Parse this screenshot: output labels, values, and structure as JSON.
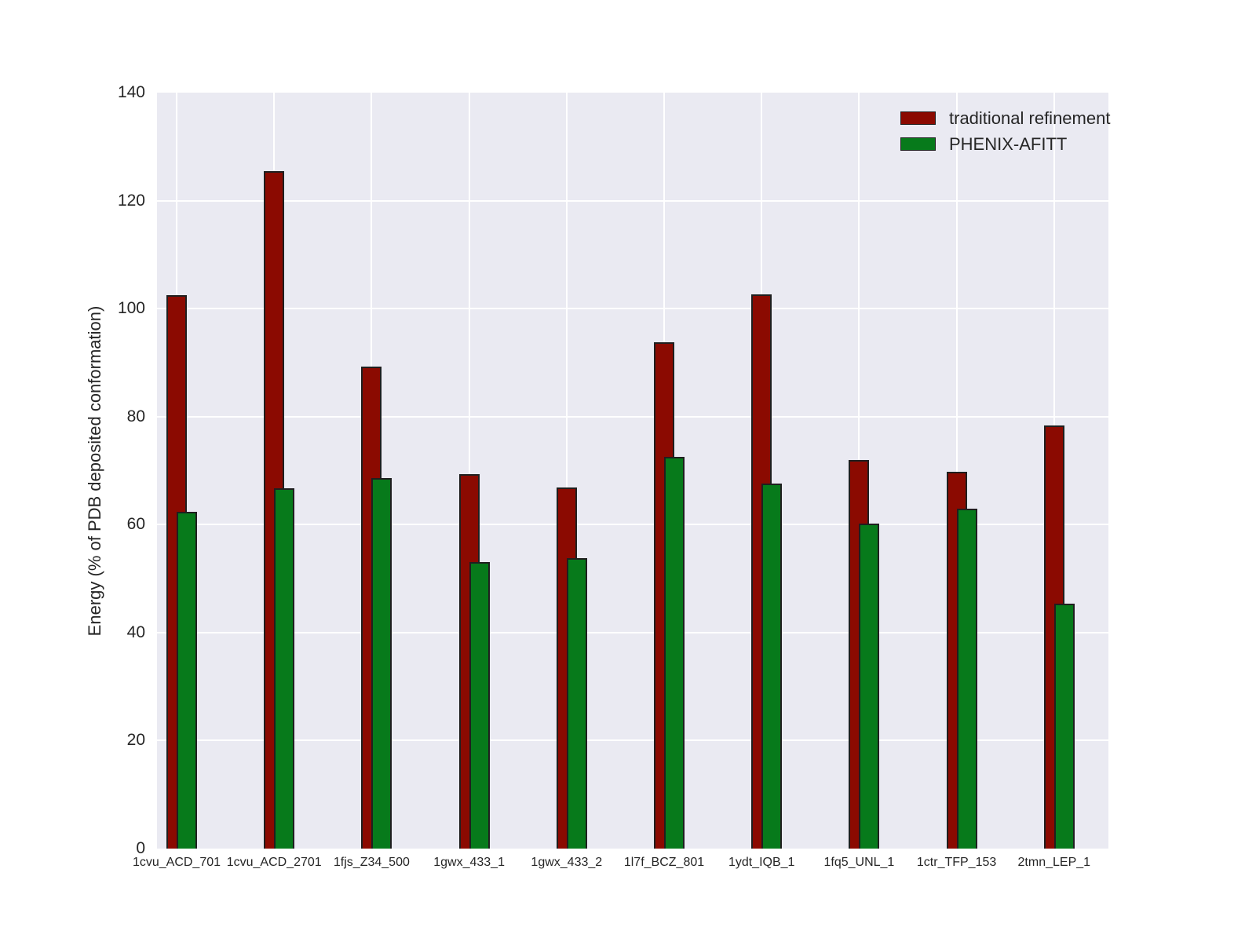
{
  "chart_data": {
    "type": "bar",
    "title": "",
    "xlabel": "",
    "ylabel": "Energy (% of PDB deposited conformation)",
    "ylim": [
      0,
      140
    ],
    "yticks": [
      0,
      20,
      40,
      60,
      80,
      100,
      120,
      140
    ],
    "grid": true,
    "legend_position": "upper right",
    "categories": [
      "1cvu_ACD_701",
      "1cvu_ACD_2701",
      "1fjs_Z34_500",
      "1gwx_433_1",
      "1gwx_433_2",
      "1l7f_BCZ_801",
      "1ydt_IQB_1",
      "1fq5_UNL_1",
      "1ctr_TFP_153",
      "2tmn_LEP_1"
    ],
    "series": [
      {
        "name": "traditional refinement",
        "color": "#8b0a01",
        "values": [
          102.5,
          125.4,
          89.3,
          69.4,
          66.9,
          93.7,
          102.6,
          71.9,
          69.8,
          78.4
        ]
      },
      {
        "name": "PHENIX-AFITT",
        "color": "#077a1b",
        "values": [
          62.3,
          66.7,
          68.6,
          53.0,
          53.8,
          72.5,
          67.6,
          60.2,
          63.0,
          45.3
        ]
      }
    ]
  },
  "colors": {
    "figure_background": "#ffffff",
    "plot_background": "#eaeaf2",
    "gridline": "#ffffff",
    "bar_edge": "#1f1f1f",
    "text": "#262626"
  }
}
